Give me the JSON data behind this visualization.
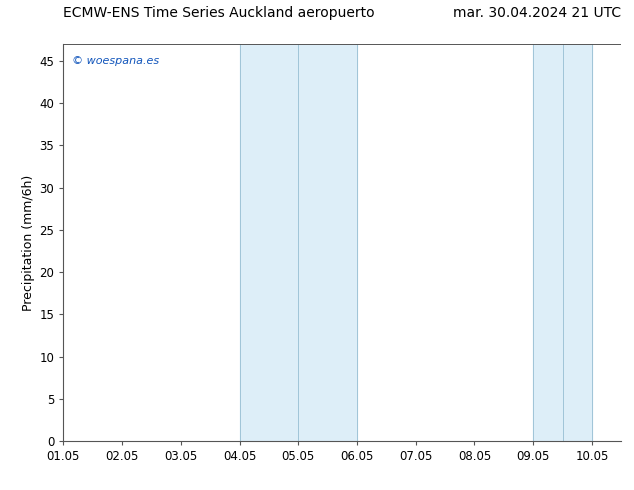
{
  "title_left": "ECMW-ENS Time Series Auckland aeropuerto",
  "title_right": "mar. 30.04.2024 21 UTC",
  "ylabel": "Precipitation (mm/6h)",
  "background_color": "#ffffff",
  "plot_bg_color": "#ffffff",
  "watermark": "© woespana.es",
  "xlim": [
    1.05,
    10.55
  ],
  "ylim": [
    0,
    47
  ],
  "yticks": [
    0,
    5,
    10,
    15,
    20,
    25,
    30,
    35,
    40,
    45
  ],
  "xtick_labels": [
    "01.05",
    "02.05",
    "03.05",
    "04.05",
    "05.05",
    "06.05",
    "07.05",
    "08.05",
    "09.05",
    "10.05"
  ],
  "xtick_positions": [
    1.05,
    2.05,
    3.05,
    4.05,
    5.05,
    6.05,
    7.05,
    8.05,
    9.05,
    10.05
  ],
  "shaded_regions": [
    {
      "xmin": 4.05,
      "xmax": 5.05,
      "color": "#ddeef8"
    },
    {
      "xmin": 5.05,
      "xmax": 6.05,
      "color": "#ddeef8"
    },
    {
      "xmin": 9.05,
      "xmax": 9.55,
      "color": "#ddeef8"
    },
    {
      "xmin": 9.55,
      "xmax": 10.05,
      "color": "#ddeef8"
    }
  ],
  "vlines_inner": [
    5.05,
    9.55
  ],
  "title_fontsize": 10,
  "ylabel_fontsize": 9,
  "tick_fontsize": 8.5,
  "watermark_color": "#1155bb",
  "watermark_fontsize": 8,
  "spine_color": "#555555",
  "tick_color": "#555555",
  "shade_color": "#ddeef8",
  "vline_color": "#a0c4d8"
}
